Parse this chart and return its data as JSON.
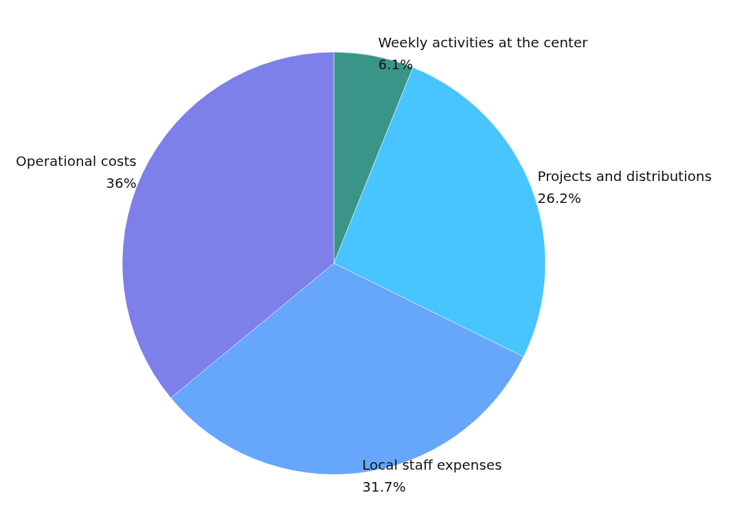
{
  "chart_data": {
    "type": "pie",
    "categories": [
      "Weekly activities at the center",
      "Projects and distributions",
      "Local staff expenses",
      "Operational costs"
    ],
    "values": [
      6.1,
      26.2,
      31.7,
      36
    ],
    "colors": [
      "#3a9588",
      "#48c4fe",
      "#66a6fb",
      "#7d80e8"
    ],
    "value_labels": [
      "6.1%",
      "26.2%",
      "31.7%",
      "36%"
    ],
    "legend": false
  }
}
